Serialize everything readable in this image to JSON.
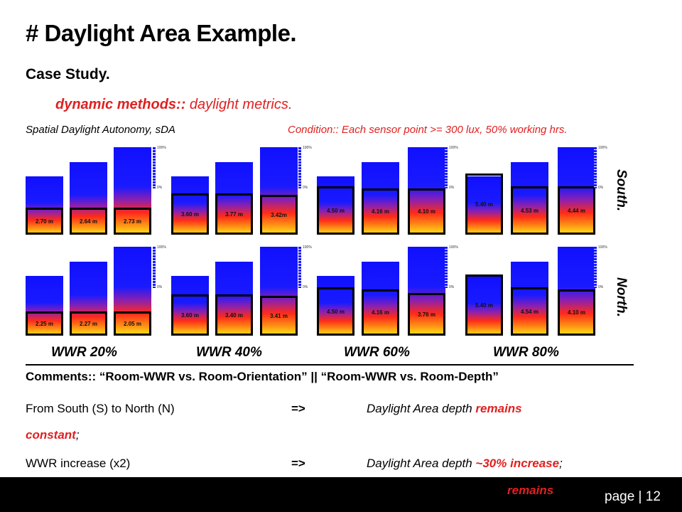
{
  "title": "# Daylight Area Example.",
  "subtitle": "Case Study.",
  "methods": {
    "bold": "dynamic methods::",
    "rest": " daylight metrics."
  },
  "metric_label": "Spatial Daylight Autonomy, sDA",
  "condition": "Condition:: Each sensor point >= 300 lux, 50% working hrs.",
  "scale_labels": {
    "top": "100%",
    "bottom": "0%"
  },
  "orientations": {
    "south": "South.",
    "north": "North."
  },
  "wwr_labels": [
    "WWR 20%",
    "WWR 40%",
    "WWR 60%",
    "WWR 80%"
  ],
  "south_depths": [
    "2.70 m",
    "2.64 m",
    "2.73 m",
    "3.60 m",
    "3.77 m",
    "3.42m",
    "4.50 m",
    "4.16 m",
    "4.10 m",
    "5.40 m",
    "4.53 m",
    "4.44 m"
  ],
  "north_depths": [
    "2.25 m",
    "2.27 m",
    "2.05 m",
    "3.60 m",
    "3.40 m",
    "3.41 m",
    "4.50 m",
    "4.16 m",
    "3.76 m",
    "5.40 m",
    "4.54 m",
    "4.10 m"
  ],
  "comments": "Comments:: “Room-WWR vs. Room-Orientation” || “Room-WWR vs. Room-Depth”",
  "rows": [
    {
      "left": "From South (S) to North (N)",
      "arrow": "=>",
      "text": "Daylight Area depth ",
      "highlight": "remains",
      "continuation": "constant",
      "end": ";"
    },
    {
      "left": "WWR increase (x2)",
      "arrow": "=>",
      "text": "Daylight Area depth ",
      "highlight": "~30% increase",
      "end": ";"
    }
  ],
  "footer": {
    "partial_text": "remains",
    "page": "page | 12"
  }
}
